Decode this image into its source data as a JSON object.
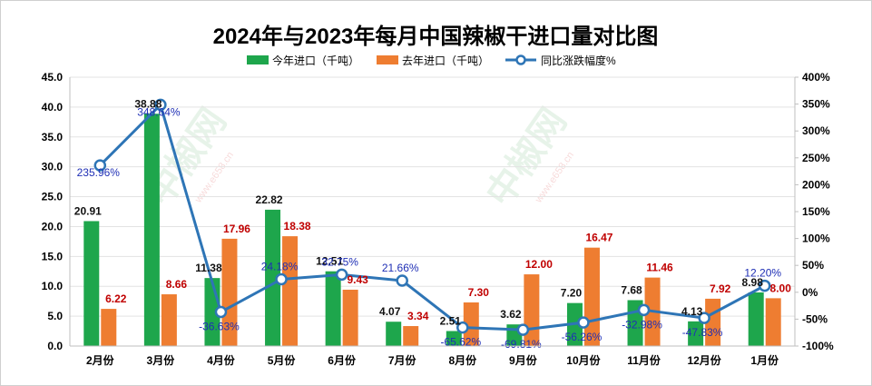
{
  "chart_data": {
    "type": "bar",
    "title": "2024年与2023年每月中国辣椒干进口量对比图",
    "categories": [
      "2月份",
      "3月份",
      "4月份",
      "5月份",
      "6月份",
      "7月份",
      "8月份",
      "9月份",
      "10月份",
      "11月份",
      "12月份",
      "1月份"
    ],
    "series": [
      {
        "name": "今年进口（千吨）",
        "type": "bar",
        "color": "#1ea64c",
        "axis": "left",
        "values": [
          20.91,
          38.88,
          11.38,
          22.82,
          12.51,
          4.07,
          2.51,
          3.62,
          7.2,
          7.68,
          4.13,
          8.98
        ],
        "labels": [
          "20.91",
          "38.88",
          "11.38",
          "22.82",
          "12.51",
          "4.07",
          "2.51",
          "3.62",
          "7.20",
          "7.68",
          "4.13",
          "8.98"
        ]
      },
      {
        "name": "去年进口（千吨）",
        "type": "bar",
        "color": "#ee7d31",
        "axis": "left",
        "values": [
          6.22,
          8.66,
          17.96,
          18.38,
          9.43,
          3.34,
          7.3,
          12.0,
          16.47,
          11.46,
          7.92,
          8.0
        ],
        "labels": [
          "6.22",
          "8.66",
          "17.96",
          "18.38",
          "9.43",
          "3.34",
          "7.30",
          "12.00",
          "16.47",
          "11.46",
          "7.92",
          "8.00"
        ]
      },
      {
        "name": "同比涨跌幅度%",
        "type": "line",
        "color": "#2e75b6",
        "axis": "right",
        "values": [
          235.96,
          348.64,
          -36.63,
          24.18,
          32.75,
          21.66,
          -65.62,
          -69.81,
          -56.26,
          -32.98,
          -47.83,
          12.2
        ],
        "labels": [
          "235.96%",
          "348.64%",
          "-36.63%",
          "24.18%",
          "32.75%",
          "21.66%",
          "-65.62%",
          "-69.81%",
          "-56.26%",
          "-32.98%",
          "-47.83%",
          "12.20%"
        ]
      }
    ],
    "y_left": {
      "min": 0,
      "max": 45,
      "step": 5,
      "ticks": [
        "0.0",
        "5.0",
        "10.0",
        "15.0",
        "20.0",
        "25.0",
        "30.0",
        "35.0",
        "40.0",
        "45.0"
      ]
    },
    "y_right": {
      "min": -100,
      "max": 400,
      "step": 50,
      "ticks": [
        "-100%",
        "-50%",
        "0%",
        "50%",
        "100%",
        "150%",
        "200%",
        "250%",
        "300%",
        "350%",
        "400%"
      ]
    },
    "legend_position": "top",
    "grid": true
  },
  "watermark": {
    "brand": "中椒网",
    "url": "www.e658.cn"
  }
}
